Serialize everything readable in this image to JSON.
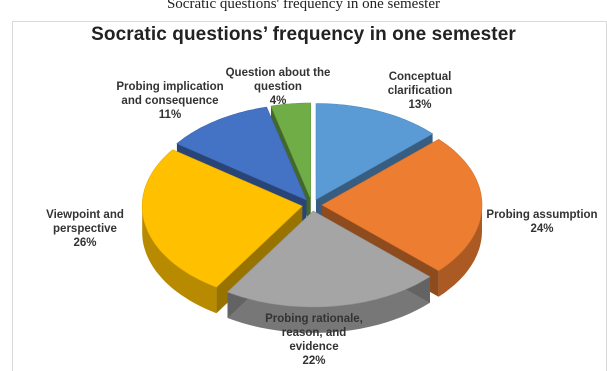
{
  "top_caption": "Socratic questions' frequency in one semester",
  "chart_data": {
    "type": "pie",
    "title": "Socratic questions’ frequency in one semester",
    "subtitle": "",
    "style": "3d-exploded",
    "categories": [
      "Conceptual clarification",
      "Probing assumption",
      "Probing rationale, reason, and evidence",
      "Viewpoint and perspective",
      "Probing implication and consequence",
      "Question about the question"
    ],
    "values": [
      13,
      24,
      22,
      26,
      11,
      4
    ],
    "value_labels": [
      "13%",
      "24%",
      "22%",
      "26%",
      "11%",
      "4%"
    ],
    "colors": [
      "#5b9bd5",
      "#ed7d31",
      "#a5a5a5",
      "#ffc000",
      "#4472c4",
      "#70ad47"
    ],
    "legend": "none"
  }
}
